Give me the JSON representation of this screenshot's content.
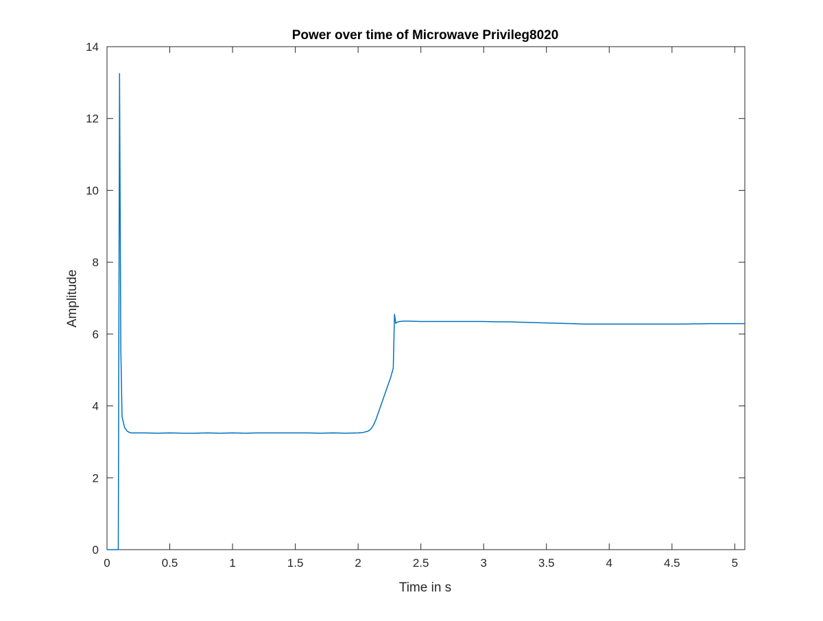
{
  "chart_data": {
    "type": "line",
    "title": "Power over time of Microwave Privileg8020",
    "xlabel": "Time in s",
    "ylabel": "Amplitude",
    "xlim": [
      0,
      5.08
    ],
    "ylim": [
      0,
      14
    ],
    "x_ticks": [
      0,
      0.5,
      1,
      1.5,
      2,
      2.5,
      3,
      3.5,
      4,
      4.5,
      5
    ],
    "x_tick_labels": [
      "0",
      "0.5",
      "1",
      "1.5",
      "2",
      "2.5",
      "3",
      "3.5",
      "4",
      "4.5",
      "5"
    ],
    "y_ticks": [
      0,
      2,
      4,
      6,
      8,
      10,
      12,
      14
    ],
    "y_tick_labels": [
      "0",
      "2",
      "4",
      "6",
      "8",
      "10",
      "12",
      "14"
    ],
    "grid": false,
    "box": true,
    "line_color": "#0072BD",
    "series": [
      {
        "x": [
          0,
          0.08,
          0.09,
          0.1,
          0.11,
          0.12,
          0.14,
          0.16,
          0.18,
          0.2,
          0.23,
          0.26,
          0.3,
          0.4,
          0.5,
          0.6,
          0.7,
          0.8,
          0.9,
          1.0,
          1.1,
          1.2,
          1.3,
          1.4,
          1.5,
          1.6,
          1.7,
          1.8,
          1.9,
          2.0,
          2.04,
          2.08,
          2.1,
          2.12,
          2.14,
          2.16,
          2.18,
          2.2,
          2.22,
          2.24,
          2.26,
          2.28,
          2.29,
          2.3,
          2.31,
          2.33,
          2.36,
          2.4,
          2.5,
          2.6,
          2.7,
          2.8,
          2.9,
          3.0,
          3.1,
          3.2,
          3.3,
          3.4,
          3.5,
          3.6,
          3.7,
          3.8,
          3.9,
          4.0,
          4.2,
          4.4,
          4.6,
          4.8,
          5.0,
          5.08
        ],
        "y": [
          0,
          0,
          0,
          13.25,
          5.6,
          3.7,
          3.4,
          3.3,
          3.26,
          3.25,
          3.25,
          3.25,
          3.25,
          3.24,
          3.25,
          3.24,
          3.24,
          3.25,
          3.24,
          3.25,
          3.24,
          3.25,
          3.25,
          3.25,
          3.25,
          3.25,
          3.24,
          3.25,
          3.24,
          3.25,
          3.26,
          3.3,
          3.35,
          3.45,
          3.6,
          3.8,
          4.0,
          4.2,
          4.4,
          4.6,
          4.8,
          5.05,
          6.55,
          6.3,
          6.33,
          6.35,
          6.36,
          6.36,
          6.35,
          6.35,
          6.35,
          6.35,
          6.35,
          6.35,
          6.34,
          6.34,
          6.33,
          6.32,
          6.31,
          6.3,
          6.29,
          6.28,
          6.28,
          6.28,
          6.28,
          6.28,
          6.28,
          6.29,
          6.29,
          6.29
        ]
      }
    ]
  }
}
